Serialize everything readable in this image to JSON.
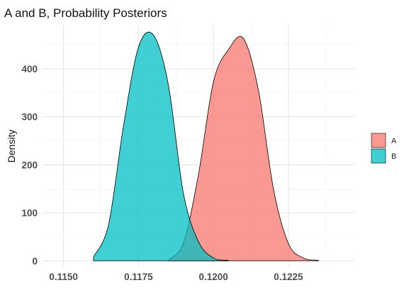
{
  "chart_data": {
    "type": "area",
    "title": "A and B, Probability Posteriors",
    "xlabel": "",
    "ylabel": "Density",
    "xlim": [
      0.1143,
      0.1247
    ],
    "ylim": [
      -12,
      490
    ],
    "x_ticks": [
      0.115,
      0.1175,
      0.12,
      0.1225
    ],
    "x_tick_labels": [
      "0.1150",
      "0.1175",
      "0.1200",
      "0.1225"
    ],
    "y_ticks": [
      0,
      100,
      200,
      300,
      400
    ],
    "y_tick_labels": [
      "0",
      "100",
      "200",
      "300",
      "400"
    ],
    "grid": true,
    "legend_position": "right",
    "series": [
      {
        "name": "A",
        "color": "#f8766d",
        "x": [
          0.1185,
          0.119,
          0.1195,
          0.12,
          0.1205,
          0.121,
          0.1215,
          0.122,
          0.1225,
          0.123,
          0.1235
        ],
        "y": [
          2,
          38,
          180,
          373,
          440,
          463,
          355,
          150,
          36,
          6,
          1
        ]
      },
      {
        "name": "B",
        "color": "#00bfc4",
        "x": [
          0.116,
          0.1165,
          0.117,
          0.1175,
          0.118,
          0.1185,
          0.119,
          0.1195,
          0.12,
          0.1205
        ],
        "y": [
          8,
          75,
          281,
          445,
          470,
          365,
          140,
          40,
          6,
          1
        ]
      }
    ]
  }
}
